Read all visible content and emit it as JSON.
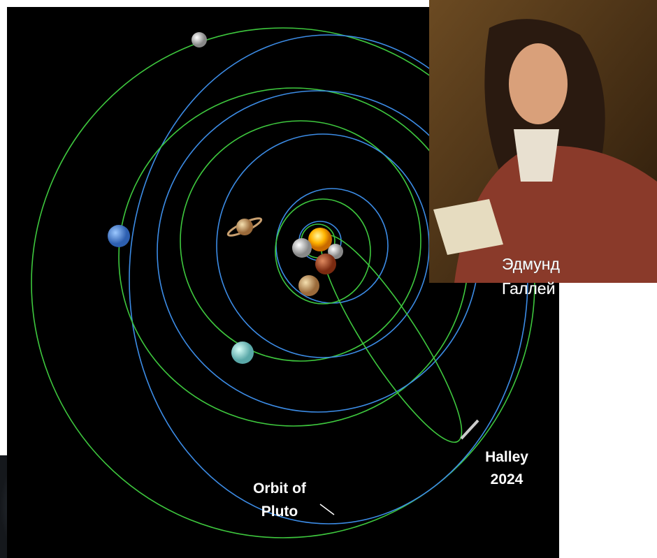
{
  "portrait_caption": [
    "Эдмунд",
    "Галлей"
  ],
  "comet_label": [
    "Halley",
    "2024"
  ],
  "pluto_label": [
    "Orbit of",
    "Pluto"
  ]
}
